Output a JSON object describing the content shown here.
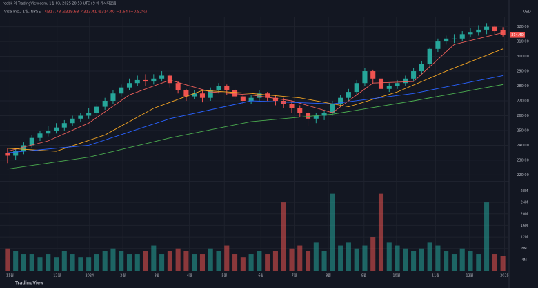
{
  "header": {
    "published": "redbk 이 TradingView.com, 1월 03, 2025 20:53 UTC+9 에 게시되었음",
    "symbol": "Visa Inc., 1일, NYSE",
    "ohlc": "시317.78 고319.68 저313.41 종314.40 −1.64 (−0.52%)",
    "currency": "USD",
    "brand": "TradingView"
  },
  "chart_data": {
    "type": "candlestick",
    "open": [
      235,
      233,
      236,
      240,
      245,
      248,
      250,
      252,
      255,
      258,
      260,
      262,
      266,
      270,
      275,
      279,
      282,
      284,
      283,
      285,
      287,
      282,
      277,
      273,
      275,
      272,
      277,
      280,
      277,
      273,
      270,
      272,
      275,
      272,
      270,
      268,
      265,
      262,
      258,
      260,
      262,
      268,
      272,
      276,
      282,
      290,
      285,
      278,
      280,
      282,
      285,
      290,
      295,
      305,
      310,
      312,
      312,
      315,
      316,
      318,
      320,
      317.78
    ],
    "high": [
      238,
      238,
      242,
      247,
      250,
      253,
      255,
      257,
      260,
      262,
      265,
      268,
      272,
      277,
      281,
      285,
      287,
      288,
      288,
      290,
      288,
      283,
      278,
      277,
      277,
      279,
      282,
      281,
      278,
      274,
      274,
      277,
      276,
      274,
      272,
      270,
      267,
      264,
      262,
      264,
      270,
      274,
      278,
      284,
      292,
      291,
      286,
      282,
      284,
      287,
      292,
      297,
      306,
      312,
      314,
      315,
      317,
      319,
      321,
      322,
      321,
      319.68
    ],
    "low": [
      228,
      230,
      234,
      238,
      243,
      246,
      248,
      250,
      253,
      256,
      258,
      260,
      264,
      268,
      273,
      277,
      280,
      280,
      281,
      283,
      279,
      275,
      270,
      271,
      269,
      270,
      275,
      274,
      271,
      268,
      268,
      270,
      270,
      267,
      265,
      262,
      259,
      253,
      255,
      257,
      260,
      266,
      270,
      274,
      280,
      282,
      275,
      276,
      278,
      280,
      283,
      288,
      293,
      303,
      308,
      309,
      310,
      313,
      314,
      315,
      315,
      313.41
    ],
    "close": [
      233,
      236,
      240,
      245,
      248,
      250,
      252,
      255,
      258,
      260,
      262,
      266,
      270,
      275,
      279,
      282,
      284,
      283,
      285,
      287,
      282,
      277,
      273,
      275,
      272,
      277,
      280,
      277,
      273,
      270,
      272,
      275,
      272,
      270,
      268,
      265,
      262,
      258,
      260,
      262,
      268,
      272,
      276,
      282,
      290,
      285,
      278,
      280,
      282,
      285,
      290,
      295,
      305,
      310,
      312,
      312,
      315,
      316,
      318,
      320,
      317,
      314.4
    ],
    "volume": [
      8,
      7,
      6,
      6,
      5,
      6,
      5,
      7,
      6,
      5,
      5,
      6,
      7,
      8,
      7,
      6,
      6,
      7,
      9,
      6,
      7,
      8,
      7,
      6,
      6,
      8,
      7,
      9,
      6,
      5,
      6,
      7,
      6,
      7,
      24,
      8,
      9,
      7,
      10,
      7,
      27,
      9,
      10,
      8,
      9,
      12,
      27,
      10,
      9,
      8,
      7,
      8,
      10,
      9,
      7,
      6,
      8,
      7,
      6,
      24,
      6,
      5.3
    ],
    "last_label": "314.40",
    "up_color": "#26a69a",
    "down_color": "#ef5350",
    "moving_averages": [
      {
        "color": "#f0605a",
        "x": [
          0,
          5,
          10,
          15,
          20,
          25,
          30,
          35,
          40,
          45,
          50,
          55,
          61
        ],
        "values": [
          236,
          243,
          255,
          274,
          284,
          276,
          274,
          270,
          262,
          282,
          283,
          308,
          316
        ]
      },
      {
        "color": "#f5a623",
        "x": [
          0,
          6,
          12,
          18,
          24,
          30,
          36,
          42,
          48,
          54,
          61
        ],
        "values": [
          238,
          236,
          247,
          265,
          277,
          275,
          272,
          266,
          276,
          290,
          305
        ]
      },
      {
        "color": "#2962ff",
        "x": [
          0,
          10,
          20,
          30,
          40,
          50,
          61
        ],
        "values": [
          235,
          240,
          258,
          270,
          268,
          275,
          287
        ]
      },
      {
        "color": "#4caf50",
        "x": [
          0,
          10,
          20,
          30,
          40,
          50,
          61
        ],
        "values": [
          224,
          232,
          245,
          256,
          261,
          270,
          281
        ]
      }
    ],
    "xlim": [
      -0.5,
      61.5
    ],
    "xticks": [
      {
        "value": 0.3,
        "label": "11월"
      },
      {
        "value": 6.1,
        "label": "12월"
      },
      {
        "value": 10.1,
        "label": "2024"
      },
      {
        "value": 14.2,
        "label": "2월"
      },
      {
        "value": 18.4,
        "label": "3월"
      },
      {
        "value": 22.4,
        "label": "4월"
      },
      {
        "value": 26.7,
        "label": "5월"
      },
      {
        "value": 31.2,
        "label": "6월"
      },
      {
        "value": 35.3,
        "label": "7월"
      },
      {
        "value": 39.5,
        "label": "8월"
      },
      {
        "value": 43.9,
        "label": "9월"
      },
      {
        "value": 47.9,
        "label": "10월"
      },
      {
        "value": 52.7,
        "label": "11월"
      },
      {
        "value": 56.9,
        "label": "12월"
      },
      {
        "value": 61.2,
        "label": "2025"
      }
    ],
    "ylim": [
      216,
      324
    ],
    "yticks": [
      {
        "value": 220,
        "label": "220.00"
      },
      {
        "value": 230,
        "label": "230.00"
      },
      {
        "value": 240,
        "label": "240.00"
      },
      {
        "value": 250,
        "label": "250.00"
      },
      {
        "value": 260,
        "label": "260.00"
      },
      {
        "value": 270,
        "label": "270.00"
      },
      {
        "value": 280,
        "label": "280.00"
      },
      {
        "value": 290,
        "label": "290.00"
      },
      {
        "value": 300,
        "label": "300.00"
      },
      {
        "value": 310,
        "label": "310.00"
      },
      {
        "value": 320,
        "label": "320.00"
      }
    ],
    "vlim": [
      0,
      31
    ],
    "vticks": [
      {
        "value": 4,
        "label": "4M"
      },
      {
        "value": 8,
        "label": "8M"
      },
      {
        "value": 12,
        "label": "12M"
      },
      {
        "value": 16,
        "label": "16M"
      },
      {
        "value": 20,
        "label": "20M"
      },
      {
        "value": 24,
        "label": "24M"
      },
      {
        "value": 28,
        "label": "28M"
      }
    ],
    "grid": true
  }
}
